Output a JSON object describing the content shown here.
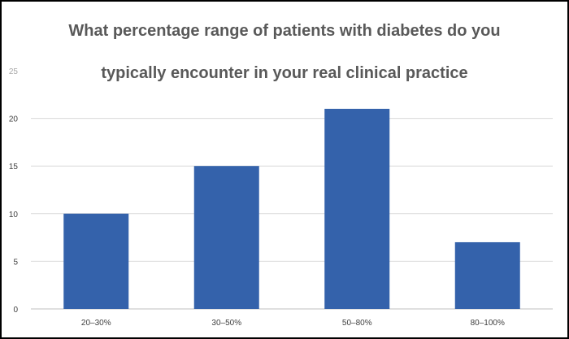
{
  "chart_data": {
    "type": "bar",
    "title": "What percentage range of patients with diabetes do you typically encounter in your real clinical practice",
    "title_lines": [
      "What percentage range of patients with diabetes do you",
      "typically encounter in your real clinical practice"
    ],
    "categories": [
      "20–30%",
      "30–50%",
      "50–80%",
      "80–100%"
    ],
    "values": [
      10,
      15,
      21,
      7
    ],
    "ylim": [
      0,
      25
    ],
    "yticks": [
      0,
      5,
      10,
      15,
      20,
      25
    ],
    "xlabel": "",
    "ylabel": "",
    "grid": true,
    "legend": "none",
    "bar_color": "#3462ab",
    "grid_color": "#d9d9d9"
  }
}
